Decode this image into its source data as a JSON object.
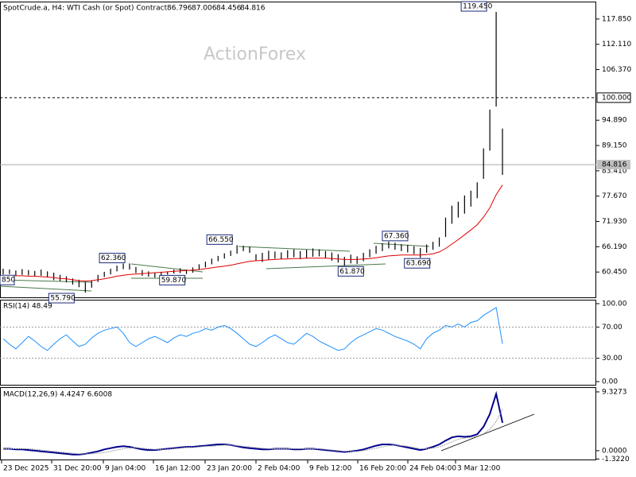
{
  "header": {
    "symbol": "SpotCrude.a, H4:",
    "description": "WTI Cash (or Spot) Contract",
    "open": 86.796,
    "high": 87.006,
    "low": 84.456,
    "close": 84.816
  },
  "watermark": "ActionForex",
  "chart_data": [
    {
      "type": "ohlc",
      "color": "#000000",
      "ylim": [
        54.71,
        121.62
      ],
      "yticks": [
        {
          "value": 117.85,
          "label": "117.850"
        },
        {
          "value": 112.11,
          "label": "112.110"
        },
        {
          "value": 106.37,
          "label": "106.370"
        },
        {
          "value": 94.89,
          "label": "94.890"
        },
        {
          "value": 89.15,
          "label": "89.150"
        },
        {
          "value": 83.41,
          "label": "83.410"
        },
        {
          "value": 77.67,
          "label": "77.670"
        },
        {
          "value": 71.93,
          "label": "71.930"
        },
        {
          "value": 66.19,
          "label": "66.190"
        },
        {
          "value": 60.45,
          "label": "60.450"
        }
      ],
      "x_labels": [
        "23 Dec 2025",
        "31 Dec 20:00",
        "9 Jan 04:00",
        "16 Jan 12:00",
        "23 Jan 20:00",
        "2 Feb 04:00",
        "9 Feb 12:00",
        "16 Feb 20:00",
        "24 Feb 04:00",
        "3 Mar 12:00"
      ],
      "high": [
        61.2,
        61.0,
        60.8,
        61.1,
        60.9,
        60.7,
        61.0,
        60.6,
        60.3,
        59.8,
        59.5,
        59.0,
        58.7,
        58.2,
        58.6,
        59.8,
        60.5,
        61.2,
        61.9,
        62.36,
        62.4,
        61.6,
        60.9,
        60.6,
        60.2,
        60.5,
        60.6,
        61.0,
        61.3,
        61.0,
        61.5,
        62.2,
        62.8,
        63.5,
        64.1,
        64.7,
        65.3,
        66.55,
        66.4,
        66.2,
        64.5,
        64.8,
        65.3,
        65.1,
        64.9,
        65.4,
        65.6,
        65.2,
        65.5,
        65.8,
        65.6,
        65.2,
        64.9,
        64.5,
        63.9,
        64.4,
        64.0,
        64.8,
        65.6,
        66.4,
        67.0,
        67.36,
        67.1,
        66.8,
        66.6,
        66.3,
        65.9,
        66.7,
        67.3,
        68.3,
        72.8,
        75.5,
        76.4,
        77.8,
        78.9,
        80.8,
        88.5,
        97.3,
        119.45,
        93.0
      ],
      "low": [
        59.9,
        60.0,
        59.6,
        59.8,
        59.7,
        59.5,
        59.6,
        59.2,
        58.6,
        58.4,
        58.1,
        57.6,
        57.0,
        55.79,
        56.9,
        58.2,
        59.3,
        59.9,
        60.6,
        61.1,
        61.0,
        60.2,
        59.6,
        59.4,
        59.2,
        59.5,
        59.87,
        60.1,
        60.2,
        60.0,
        60.3,
        60.9,
        61.5,
        62.2,
        62.9,
        63.5,
        64.1,
        64.6,
        65.2,
        64.8,
        63.0,
        62.7,
        63.2,
        63.5,
        63.3,
        63.6,
        63.8,
        63.4,
        63.5,
        63.9,
        64.0,
        63.6,
        63.0,
        62.6,
        61.87,
        62.4,
        62.3,
        62.9,
        63.8,
        64.6,
        65.2,
        65.8,
        65.5,
        65.2,
        64.9,
        64.5,
        63.69,
        64.8,
        65.5,
        66.2,
        68.4,
        71.4,
        72.8,
        73.7,
        75.3,
        77.2,
        81.6,
        88.0,
        98.0,
        82.5
      ],
      "ma": {
        "color": "#e00000",
        "values": [
          59.6,
          59.6,
          59.6,
          59.6,
          59.5,
          59.5,
          59.4,
          59.3,
          59.2,
          59.0,
          58.9,
          58.7,
          58.5,
          58.4,
          58.5,
          58.7,
          58.9,
          59.2,
          59.5,
          59.7,
          59.9,
          60.0,
          60.1,
          60.2,
          60.3,
          60.4,
          60.5,
          60.6,
          60.7,
          60.8,
          60.9,
          61.0,
          61.2,
          61.4,
          61.6,
          61.8,
          62.0,
          62.3,
          62.6,
          62.9,
          63.0,
          63.1,
          63.2,
          63.3,
          63.4,
          63.4,
          63.5,
          63.5,
          63.6,
          63.6,
          63.6,
          63.6,
          63.5,
          63.4,
          63.3,
          63.3,
          63.3,
          63.4,
          63.5,
          63.7,
          63.9,
          64.1,
          64.2,
          64.3,
          64.3,
          64.3,
          64.3,
          64.4,
          64.6,
          65.0,
          65.8,
          66.8,
          67.8,
          68.9,
          70.0,
          71.2,
          72.9,
          75.0,
          78.0,
          80.2
        ]
      },
      "levels": [
        {
          "value": 100,
          "label": "100.000",
          "style": "dashed"
        },
        {
          "value": 84.816,
          "label": "84.816",
          "style": "solid"
        }
      ],
      "annotations": [
        "119.450",
        "67.360",
        "66.550",
        "62.360",
        "63.690",
        "61.870",
        "59.870",
        "55.790",
        "850"
      ]
    },
    {
      "type": "line",
      "title": "RSI(14) 48.49",
      "color": "#1e90ff",
      "ylim": [
        -4.04,
        104.04
      ],
      "yticks": [
        {
          "value": 100,
          "label": "100.00"
        },
        {
          "value": 70,
          "label": "70.00"
        },
        {
          "value": 30,
          "label": "30.00"
        },
        {
          "value": 0,
          "label": "0.00"
        }
      ],
      "values": [
        55,
        48,
        42,
        50,
        58,
        52,
        45,
        40,
        48,
        55,
        60,
        52,
        45,
        48,
        56,
        62,
        66,
        68,
        70,
        62,
        50,
        45,
        50,
        55,
        58,
        54,
        50,
        56,
        60,
        58,
        62,
        64,
        68,
        66,
        70,
        72,
        68,
        62,
        55,
        48,
        45,
        50,
        56,
        60,
        55,
        50,
        48,
        55,
        62,
        58,
        52,
        48,
        44,
        40,
        42,
        50,
        56,
        60,
        64,
        68,
        66,
        62,
        58,
        55,
        52,
        48,
        42,
        55,
        62,
        66,
        72,
        70,
        74,
        70,
        76,
        78,
        85,
        90,
        95,
        48.49
      ]
    },
    {
      "type": "macd",
      "title": "MACD(12,26,9) 4.4247 6.6008",
      "ylim": [
        -1.4,
        9.95
      ],
      "yticks": [
        9.3273,
        {
          "value": 0,
          "label": "0.0000"
        },
        {
          "value": -1.322,
          "label": "-1.3220"
        }
      ],
      "series": [
        {
          "color": "#00008b",
          "values": [
            0.3,
            0.3,
            0.2,
            0.2,
            0.1,
            0.0,
            -0.1,
            -0.2,
            -0.3,
            -0.4,
            -0.5,
            -0.6,
            -0.6,
            -0.5,
            -0.3,
            -0.1,
            0.2,
            0.4,
            0.6,
            0.7,
            0.6,
            0.4,
            0.2,
            0.1,
            0.1,
            0.2,
            0.3,
            0.4,
            0.5,
            0.6,
            0.6,
            0.7,
            0.8,
            0.9,
            1.0,
            1.0,
            0.9,
            0.7,
            0.5,
            0.4,
            0.3,
            0.2,
            0.2,
            0.3,
            0.3,
            0.3,
            0.2,
            0.2,
            0.3,
            0.3,
            0.2,
            0.1,
            0.0,
            -0.1,
            -0.2,
            -0.1,
            0.0,
            0.2,
            0.5,
            0.8,
            1.0,
            1.0,
            0.9,
            0.7,
            0.5,
            0.3,
            0.1,
            0.3,
            0.6,
            1.0,
            1.6,
            2.1,
            2.3,
            2.2,
            2.3,
            2.6,
            3.8,
            5.8,
            9.0,
            4.4247
          ]
        },
        {
          "color": "#a0a0a0",
          "values": [
            0.3,
            0.3,
            0.3,
            0.3,
            0.3,
            0.2,
            0.1,
            0.0,
            -0.1,
            -0.2,
            -0.3,
            -0.4,
            -0.5,
            -0.5,
            -0.5,
            -0.4,
            -0.3,
            -0.1,
            0.1,
            0.3,
            0.4,
            0.5,
            0.4,
            0.3,
            0.2,
            0.2,
            0.2,
            0.3,
            0.4,
            0.5,
            0.5,
            0.6,
            0.7,
            0.7,
            0.8,
            0.9,
            0.9,
            0.8,
            0.7,
            0.6,
            0.5,
            0.4,
            0.3,
            0.3,
            0.3,
            0.3,
            0.3,
            0.3,
            0.3,
            0.3,
            0.3,
            0.2,
            0.1,
            0.0,
            -0.1,
            -0.1,
            -0.1,
            0.0,
            0.2,
            0.4,
            0.6,
            0.8,
            0.9,
            0.8,
            0.7,
            0.5,
            0.3,
            0.3,
            0.4,
            0.6,
            1.0,
            1.4,
            1.8,
            2.0,
            2.1,
            2.3,
            2.7,
            3.4,
            4.6,
            6.6008
          ]
        }
      ]
    }
  ]
}
